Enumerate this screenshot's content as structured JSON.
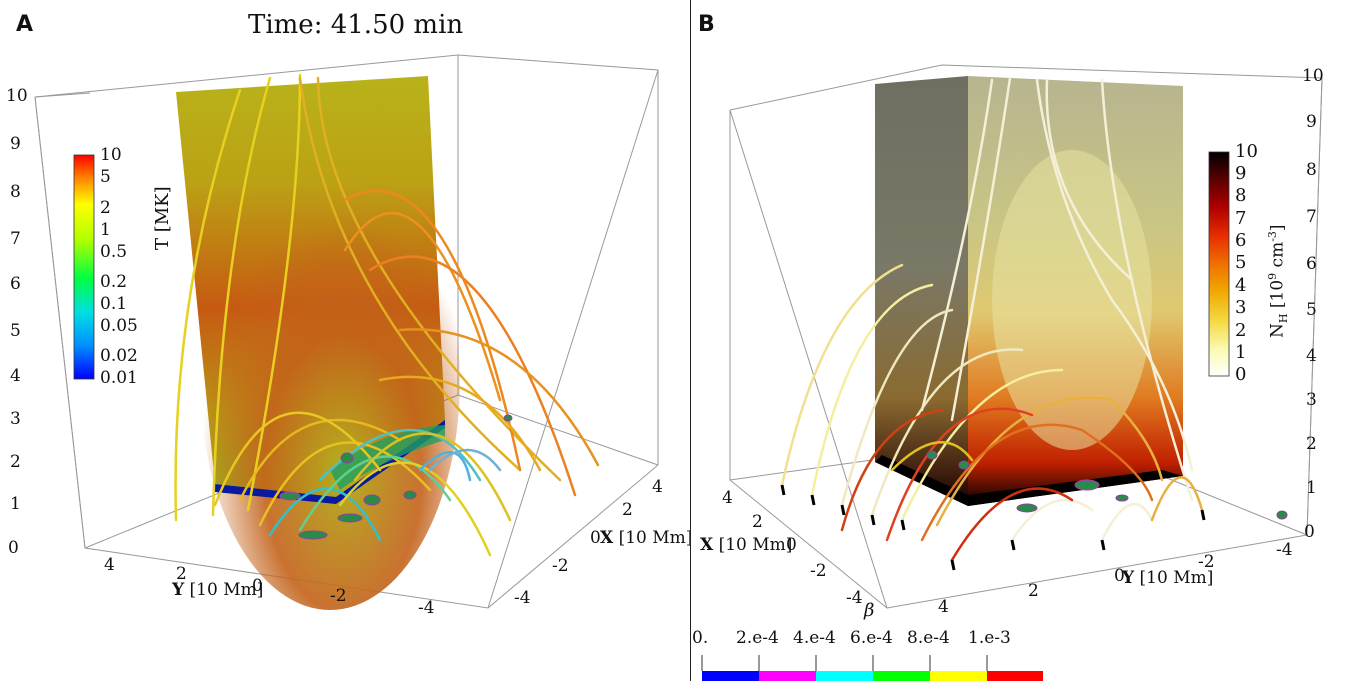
{
  "panel_a": {
    "label": "A",
    "title": "Time: 41.50 min",
    "z_ticks": [
      "0",
      "1",
      "2",
      "3",
      "4",
      "5",
      "6",
      "7",
      "8",
      "9",
      "10"
    ],
    "y_axis": {
      "label_bold": "Y",
      "label_rest": "[10 Mm]",
      "ticks": [
        "4",
        "2",
        "0",
        "-2",
        "-4"
      ]
    },
    "x_axis": {
      "label_bold": "X",
      "label_rest": "[10 Mm]",
      "ticks": [
        "4",
        "2",
        "0",
        "-2",
        "-4"
      ]
    },
    "colorbar": {
      "label": "T [MK]",
      "ticks": [
        "10",
        "5",
        "2",
        "1",
        "0.5",
        "0.2",
        "0.1",
        "0.05",
        "0.02",
        "0.01"
      ],
      "colors": [
        "#ff0000",
        "#ff8000",
        "#ffff00",
        "#80ff00",
        "#00ff00",
        "#00ffff",
        "#0080ff",
        "#0000ff"
      ]
    }
  },
  "panel_b": {
    "label": "B",
    "z_ticks": [
      "0",
      "1",
      "2",
      "3",
      "4",
      "5",
      "6",
      "7",
      "8",
      "9",
      "10"
    ],
    "x_axis": {
      "label_bold": "X",
      "label_rest": "[10 Mm]",
      "ticks": [
        "4",
        "2",
        "0",
        "-2",
        "-4"
      ]
    },
    "y_axis": {
      "label_bold": "Y",
      "label_rest": "[10 Mm]",
      "ticks": [
        "4",
        "2",
        "0",
        "-2",
        "-4"
      ]
    },
    "colorbar": {
      "label_main": "N",
      "label_sub": "H",
      "label_unit": "[10",
      "label_exp": "9",
      "label_unit2": "cm",
      "label_exp2": "-3",
      "label_close": "]",
      "ticks": [
        "10",
        "9",
        "8",
        "7",
        "6",
        "5",
        "4",
        "3",
        "2",
        "1",
        "0"
      ],
      "colors": [
        "#000000",
        "#5a0000",
        "#b00000",
        "#e83000",
        "#f07000",
        "#f0a800",
        "#f4d840",
        "#fafab0",
        "#ffffff"
      ]
    },
    "beta_bar": {
      "symbol": "β",
      "ticks": [
        "0.",
        "2.e-4",
        "4.e-4",
        "6.e-4",
        "8.e-4",
        "1.e-3"
      ],
      "colors": [
        "#0000ff",
        "#ff00ff",
        "#00ffff",
        "#00ff00",
        "#ffff00",
        "#ff0000"
      ]
    }
  }
}
